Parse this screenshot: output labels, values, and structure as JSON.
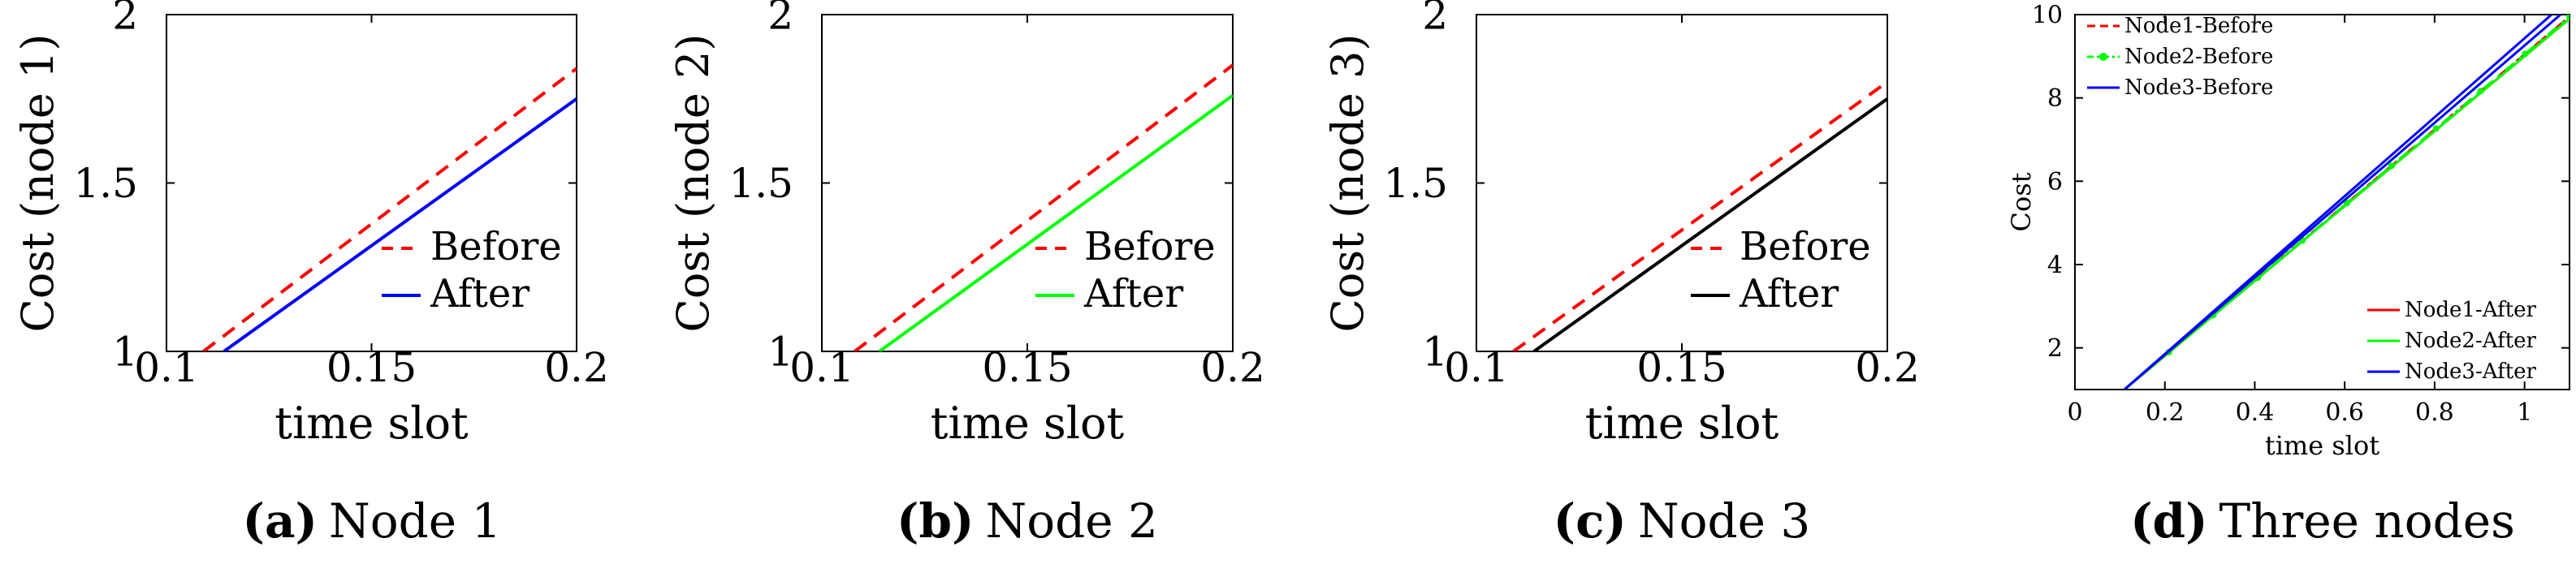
{
  "colors": {
    "red": "#ff0000",
    "blue": "#0000ff",
    "green": "#00ff00",
    "black": "#000000",
    "axis": "#000000"
  },
  "chart_data": [
    {
      "id": "a",
      "type": "line",
      "caption_key": "(a)",
      "caption_text": "Node 1",
      "xlabel": "time slot",
      "ylabel": "Cost (node 1)",
      "xlim": [
        0.1,
        0.2
      ],
      "ylim": [
        1,
        2
      ],
      "xticks": [
        0.1,
        0.15,
        0.2
      ],
      "xtick_labels": [
        "0.1",
        "0.15",
        "0.2"
      ],
      "yticks": [
        1,
        1.5,
        2
      ],
      "ytick_labels": [
        "1",
        "1.5",
        "2"
      ],
      "legend_position": "lower-right",
      "series": [
        {
          "name": "Before",
          "color": "red",
          "dash": "dashed",
          "x": [
            0.109,
            0.2
          ],
          "y": [
            1.0,
            1.84
          ]
        },
        {
          "name": "After",
          "color": "blue",
          "dash": "solid",
          "x": [
            0.114,
            0.2
          ],
          "y": [
            1.0,
            1.75
          ]
        }
      ]
    },
    {
      "id": "b",
      "type": "line",
      "caption_key": "(b)",
      "caption_text": "Node 2",
      "xlabel": "time slot",
      "ylabel": "Cost (node 2)",
      "xlim": [
        0.1,
        0.2
      ],
      "ylim": [
        1,
        2
      ],
      "xticks": [
        0.1,
        0.15,
        0.2
      ],
      "xtick_labels": [
        "0.1",
        "0.15",
        "0.2"
      ],
      "yticks": [
        1,
        1.5,
        2
      ],
      "ytick_labels": [
        "1",
        "1.5",
        "2"
      ],
      "legend_position": "lower-right",
      "series": [
        {
          "name": "Before",
          "color": "red",
          "dash": "dashed",
          "x": [
            0.108,
            0.2
          ],
          "y": [
            1.0,
            1.85
          ]
        },
        {
          "name": "After",
          "color": "green",
          "dash": "solid",
          "x": [
            0.114,
            0.2
          ],
          "y": [
            1.0,
            1.76
          ]
        }
      ]
    },
    {
      "id": "c",
      "type": "line",
      "caption_key": "(c)",
      "caption_text": "Node 3",
      "xlabel": "time slot",
      "ylabel": "Cost (node 3)",
      "xlim": [
        0.1,
        0.2
      ],
      "ylim": [
        1,
        2
      ],
      "xticks": [
        0.1,
        0.15,
        0.2
      ],
      "xtick_labels": [
        "0.1",
        "0.15",
        "0.2"
      ],
      "yticks": [
        1,
        1.5,
        2
      ],
      "ytick_labels": [
        "1",
        "1.5",
        "2"
      ],
      "legend_position": "lower-right",
      "series": [
        {
          "name": "Before",
          "color": "red",
          "dash": "dashed",
          "x": [
            0.109,
            0.2
          ],
          "y": [
            1.0,
            1.8
          ]
        },
        {
          "name": "After",
          "color": "black",
          "dash": "solid",
          "x": [
            0.114,
            0.2
          ],
          "y": [
            1.0,
            1.75
          ]
        }
      ]
    },
    {
      "id": "d",
      "type": "line",
      "caption_key": "(d)",
      "caption_text": "Three nodes",
      "xlabel": "time slot",
      "ylabel": "Cost",
      "xlim": [
        0,
        1.1
      ],
      "ylim": [
        1,
        10
      ],
      "xticks": [
        0,
        0.2,
        0.4,
        0.6,
        0.8,
        1
      ],
      "xtick_labels": [
        "0",
        "0.2",
        "0.4",
        "0.6",
        "0.8",
        "1"
      ],
      "yticks": [
        2,
        4,
        6,
        8,
        10
      ],
      "ytick_labels": [
        "2",
        "4",
        "6",
        "8",
        "10"
      ],
      "legend_position": "top-left and bottom-right",
      "series": [
        {
          "name": "Node1-Before",
          "color": "red",
          "dash": "dashed",
          "x": [
            0.11,
            1.1
          ],
          "y": [
            1.0,
            9.95
          ]
        },
        {
          "name": "Node2-Before",
          "color": "green",
          "dash": "dashdot-marker",
          "x": [
            0.11,
            1.1
          ],
          "y": [
            1.0,
            9.95
          ]
        },
        {
          "name": "Node3-Before",
          "color": "blue",
          "dash": "solid",
          "x": [
            0.11,
            1.06
          ],
          "y": [
            1.0,
            10.0
          ]
        },
        {
          "name": "Node1-After",
          "color": "red",
          "dash": "solid",
          "x": [
            0.11,
            1.1
          ],
          "y": [
            1.0,
            9.9
          ]
        },
        {
          "name": "Node2-After",
          "color": "green",
          "dash": "solid",
          "x": [
            0.11,
            1.1
          ],
          "y": [
            1.0,
            9.9
          ]
        },
        {
          "name": "Node3-After",
          "color": "blue",
          "dash": "solid",
          "x": [
            0.11,
            1.08
          ],
          "y": [
            1.0,
            10.0
          ]
        }
      ]
    }
  ]
}
